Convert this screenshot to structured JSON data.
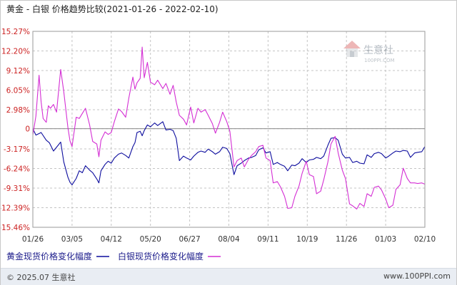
{
  "chart_data": {
    "type": "line",
    "title": "黄金 - 白银 价格趋势比较(2021-01-26 - 2022-02-10)",
    "y_ticks": [
      "15.27%",
      "12.20%",
      "9.12%",
      "6.05%",
      "2.98%",
      "0",
      "-3.17%",
      "-6.24%",
      "-9.31%",
      "-12.39%",
      "-15.46%"
    ],
    "y_tick_values": [
      15.27,
      12.2,
      9.12,
      6.05,
      2.98,
      0,
      -3.17,
      -6.24,
      -9.31,
      -12.39,
      -15.46
    ],
    "ylim": [
      -15.46,
      15.27
    ],
    "x_ticks": [
      "01/26",
      "03/05",
      "04/12",
      "05/20",
      "06/27",
      "08/04",
      "09/11",
      "10/19",
      "11/26",
      "01/03",
      "02/10"
    ],
    "xlim": [
      "2021-01-26",
      "2022-02-10"
    ],
    "grid": true,
    "series": [
      {
        "name": "黄金现货价格变化幅度",
        "color": "#0d0d9e",
        "points": [
          [
            "2021-01-26",
            0.0
          ],
          [
            "2021-01-29",
            -1.0
          ],
          [
            "2021-02-03",
            -0.6
          ],
          [
            "2021-02-08",
            -1.8
          ],
          [
            "2021-02-11",
            -2.2
          ],
          [
            "2021-02-15",
            -3.5
          ],
          [
            "2021-02-18",
            -2.9
          ],
          [
            "2021-02-22",
            -2.1
          ],
          [
            "2021-02-25",
            -5.2
          ],
          [
            "2021-03-01",
            -7.6
          ],
          [
            "2021-03-03",
            -8.4
          ],
          [
            "2021-03-05",
            -8.8
          ],
          [
            "2021-03-09",
            -7.8
          ],
          [
            "2021-03-12",
            -6.6
          ],
          [
            "2021-03-15",
            -6.9
          ],
          [
            "2021-03-18",
            -5.8
          ],
          [
            "2021-03-22",
            -6.5
          ],
          [
            "2021-03-25",
            -6.9
          ],
          [
            "2021-03-29",
            -7.9
          ],
          [
            "2021-03-31",
            -8.5
          ],
          [
            "2021-04-02",
            -6.6
          ],
          [
            "2021-04-06",
            -5.6
          ],
          [
            "2021-04-09",
            -5.1
          ],
          [
            "2021-04-12",
            -5.4
          ],
          [
            "2021-04-15",
            -4.6
          ],
          [
            "2021-04-19",
            -4.0
          ],
          [
            "2021-04-22",
            -3.8
          ],
          [
            "2021-04-26",
            -4.2
          ],
          [
            "2021-04-29",
            -4.6
          ],
          [
            "2021-05-03",
            -2.8
          ],
          [
            "2021-05-05",
            -2.2
          ],
          [
            "2021-05-07",
            -0.6
          ],
          [
            "2021-05-10",
            -0.4
          ],
          [
            "2021-05-12",
            -1.1
          ],
          [
            "2021-05-14",
            -0.3
          ],
          [
            "2021-05-17",
            0.6
          ],
          [
            "2021-05-20",
            0.3
          ],
          [
            "2021-05-24",
            0.9
          ],
          [
            "2021-05-27",
            0.5
          ],
          [
            "2021-06-01",
            1.1
          ],
          [
            "2021-06-04",
            -0.2
          ],
          [
            "2021-06-08",
            -0.1
          ],
          [
            "2021-06-11",
            -0.3
          ],
          [
            "2021-06-14",
            -1.5
          ],
          [
            "2021-06-17",
            -5.0
          ],
          [
            "2021-06-21",
            -4.3
          ],
          [
            "2021-06-24",
            -4.6
          ],
          [
            "2021-06-28",
            -4.9
          ],
          [
            "2021-07-01",
            -4.3
          ],
          [
            "2021-07-05",
            -3.7
          ],
          [
            "2021-07-08",
            -3.5
          ],
          [
            "2021-07-12",
            -3.7
          ],
          [
            "2021-07-15",
            -3.2
          ],
          [
            "2021-07-19",
            -3.6
          ],
          [
            "2021-07-22",
            -4.0
          ],
          [
            "2021-07-26",
            -3.6
          ],
          [
            "2021-07-29",
            -2.9
          ],
          [
            "2021-08-02",
            -3.1
          ],
          [
            "2021-08-05",
            -3.9
          ],
          [
            "2021-08-09",
            -7.2
          ],
          [
            "2021-08-12",
            -5.8
          ],
          [
            "2021-08-16",
            -5.4
          ],
          [
            "2021-08-19",
            -5.0
          ],
          [
            "2021-08-23",
            -4.6
          ],
          [
            "2021-08-26",
            -4.5
          ],
          [
            "2021-08-30",
            -4.2
          ],
          [
            "2021-09-02",
            -3.3
          ],
          [
            "2021-09-06",
            -3.0
          ],
          [
            "2021-09-09",
            -3.8
          ],
          [
            "2021-09-13",
            -3.6
          ],
          [
            "2021-09-16",
            -5.6
          ],
          [
            "2021-09-20",
            -5.3
          ],
          [
            "2021-09-23",
            -5.6
          ],
          [
            "2021-09-27",
            -5.9
          ],
          [
            "2021-09-30",
            -6.6
          ],
          [
            "2021-10-04",
            -5.7
          ],
          [
            "2021-10-07",
            -5.8
          ],
          [
            "2021-10-11",
            -5.4
          ],
          [
            "2021-10-14",
            -4.7
          ],
          [
            "2021-10-18",
            -5.3
          ],
          [
            "2021-10-21",
            -4.9
          ],
          [
            "2021-10-25",
            -4.8
          ],
          [
            "2021-10-28",
            -4.5
          ],
          [
            "2021-11-01",
            -4.7
          ],
          [
            "2021-11-04",
            -4.3
          ],
          [
            "2021-11-08",
            -2.6
          ],
          [
            "2021-11-11",
            -1.5
          ],
          [
            "2021-11-15",
            -1.4
          ],
          [
            "2021-11-18",
            -1.8
          ],
          [
            "2021-11-22",
            -4.0
          ],
          [
            "2021-11-25",
            -4.6
          ],
          [
            "2021-11-29",
            -4.5
          ],
          [
            "2021-12-02",
            -5.3
          ],
          [
            "2021-12-06",
            -5.1
          ],
          [
            "2021-12-09",
            -5.4
          ],
          [
            "2021-12-13",
            -5.5
          ],
          [
            "2021-12-16",
            -4.1
          ],
          [
            "2021-12-20",
            -4.5
          ],
          [
            "2021-12-23",
            -3.9
          ],
          [
            "2021-12-27",
            -3.7
          ],
          [
            "2021-12-30",
            -3.9
          ],
          [
            "2022-01-03",
            -4.6
          ],
          [
            "2022-01-06",
            -4.3
          ],
          [
            "2022-01-10",
            -3.8
          ],
          [
            "2022-01-13",
            -3.5
          ],
          [
            "2022-01-17",
            -3.6
          ],
          [
            "2022-01-20",
            -3.4
          ],
          [
            "2022-01-24",
            -3.5
          ],
          [
            "2022-01-27",
            -4.5
          ],
          [
            "2022-01-31",
            -3.8
          ],
          [
            "2022-02-03",
            -3.7
          ],
          [
            "2022-02-07",
            -3.6
          ],
          [
            "2022-02-10",
            -2.8
          ]
        ]
      },
      {
        "name": "白银现货价格变化幅度",
        "color": "#d42fd4",
        "points": [
          [
            "2021-01-26",
            -1.0
          ],
          [
            "2021-01-29",
            2.0
          ],
          [
            "2021-02-01",
            8.4
          ],
          [
            "2021-02-03",
            4.2
          ],
          [
            "2021-02-05",
            1.6
          ],
          [
            "2021-02-08",
            1.0
          ],
          [
            "2021-02-10",
            3.6
          ],
          [
            "2021-02-12",
            3.2
          ],
          [
            "2021-02-15",
            3.8
          ],
          [
            "2021-02-18",
            2.6
          ],
          [
            "2021-02-22",
            9.3
          ],
          [
            "2021-02-25",
            5.8
          ],
          [
            "2021-03-01",
            0.2
          ],
          [
            "2021-03-03",
            -1.9
          ],
          [
            "2021-03-05",
            -2.8
          ],
          [
            "2021-03-09",
            1.8
          ],
          [
            "2021-03-12",
            1.6
          ],
          [
            "2021-03-15",
            2.4
          ],
          [
            "2021-03-18",
            3.2
          ],
          [
            "2021-03-22",
            0.6
          ],
          [
            "2021-03-25",
            -2.0
          ],
          [
            "2021-03-29",
            -2.4
          ],
          [
            "2021-03-31",
            -4.4
          ],
          [
            "2021-04-02",
            -1.8
          ],
          [
            "2021-04-06",
            -0.5
          ],
          [
            "2021-04-09",
            -0.9
          ],
          [
            "2021-04-12",
            -0.6
          ],
          [
            "2021-04-15",
            1.1
          ],
          [
            "2021-04-19",
            3.1
          ],
          [
            "2021-04-22",
            2.7
          ],
          [
            "2021-04-26",
            1.8
          ],
          [
            "2021-04-29",
            4.8
          ],
          [
            "2021-05-03",
            8.1
          ],
          [
            "2021-05-05",
            6.2
          ],
          [
            "2021-05-07",
            7.2
          ],
          [
            "2021-05-10",
            7.9
          ],
          [
            "2021-05-12",
            12.8
          ],
          [
            "2021-05-14",
            8.0
          ],
          [
            "2021-05-17",
            10.4
          ],
          [
            "2021-05-20",
            7.3
          ],
          [
            "2021-05-24",
            6.9
          ],
          [
            "2021-05-27",
            7.6
          ],
          [
            "2021-06-01",
            6.3
          ],
          [
            "2021-06-04",
            7.1
          ],
          [
            "2021-06-08",
            5.4
          ],
          [
            "2021-06-11",
            6.8
          ],
          [
            "2021-06-14",
            4.2
          ],
          [
            "2021-06-17",
            2.1
          ],
          [
            "2021-06-21",
            1.5
          ],
          [
            "2021-06-24",
            0.6
          ],
          [
            "2021-06-28",
            3.4
          ],
          [
            "2021-07-01",
            0.9
          ],
          [
            "2021-07-05",
            3.2
          ],
          [
            "2021-07-08",
            2.6
          ],
          [
            "2021-07-12",
            3.0
          ],
          [
            "2021-07-15",
            2.1
          ],
          [
            "2021-07-19",
            0.8
          ],
          [
            "2021-07-22",
            -0.7
          ],
          [
            "2021-07-26",
            1.0
          ],
          [
            "2021-07-29",
            2.6
          ],
          [
            "2021-08-02",
            1.1
          ],
          [
            "2021-08-05",
            -0.4
          ],
          [
            "2021-08-09",
            -6.0
          ],
          [
            "2021-08-12",
            -5.0
          ],
          [
            "2021-08-16",
            -4.6
          ],
          [
            "2021-08-19",
            -6.0
          ],
          [
            "2021-08-23",
            -4.8
          ],
          [
            "2021-08-26",
            -4.2
          ],
          [
            "2021-08-30",
            -3.6
          ],
          [
            "2021-09-02",
            -2.8
          ],
          [
            "2021-09-06",
            -2.6
          ],
          [
            "2021-09-09",
            -4.6
          ],
          [
            "2021-09-13",
            -5.0
          ],
          [
            "2021-09-16",
            -8.5
          ],
          [
            "2021-09-20",
            -8.3
          ],
          [
            "2021-09-23",
            -9.1
          ],
          [
            "2021-09-27",
            -10.6
          ],
          [
            "2021-09-30",
            -12.5
          ],
          [
            "2021-10-04",
            -12.4
          ],
          [
            "2021-10-07",
            -10.6
          ],
          [
            "2021-10-11",
            -9.0
          ],
          [
            "2021-10-14",
            -7.0
          ],
          [
            "2021-10-18",
            -5.1
          ],
          [
            "2021-10-21",
            -7.2
          ],
          [
            "2021-10-25",
            -7.5
          ],
          [
            "2021-10-28",
            -10.2
          ],
          [
            "2021-11-01",
            -9.8
          ],
          [
            "2021-11-04",
            -8.0
          ],
          [
            "2021-11-08",
            -5.2
          ],
          [
            "2021-11-11",
            -2.4
          ],
          [
            "2021-11-15",
            -1.2
          ],
          [
            "2021-11-18",
            -3.8
          ],
          [
            "2021-11-22",
            -6.5
          ],
          [
            "2021-11-25",
            -7.8
          ],
          [
            "2021-11-29",
            -11.8
          ],
          [
            "2021-12-02",
            -12.1
          ],
          [
            "2021-12-06",
            -12.6
          ],
          [
            "2021-12-09",
            -11.7
          ],
          [
            "2021-12-13",
            -12.2
          ],
          [
            "2021-12-16",
            -10.2
          ],
          [
            "2021-12-20",
            -10.6
          ],
          [
            "2021-12-23",
            -9.2
          ],
          [
            "2021-12-27",
            -9.0
          ],
          [
            "2021-12-30",
            -9.6
          ],
          [
            "2022-01-03",
            -11.0
          ],
          [
            "2022-01-06",
            -12.4
          ],
          [
            "2022-01-10",
            -12.0
          ],
          [
            "2022-01-13",
            -9.5
          ],
          [
            "2022-01-17",
            -8.8
          ],
          [
            "2022-01-20",
            -6.2
          ],
          [
            "2022-01-24",
            -7.8
          ],
          [
            "2022-01-27",
            -8.5
          ],
          [
            "2022-01-31",
            -8.5
          ],
          [
            "2022-02-03",
            -8.6
          ],
          [
            "2022-02-07",
            -8.5
          ],
          [
            "2022-02-10",
            -8.7
          ]
        ]
      }
    ]
  },
  "watermark": {
    "brand": "生意社",
    "url": "100PPI.COM"
  },
  "footer": {
    "copyright": "© 2025.07 生意社",
    "site": "www.100PPI.com"
  }
}
